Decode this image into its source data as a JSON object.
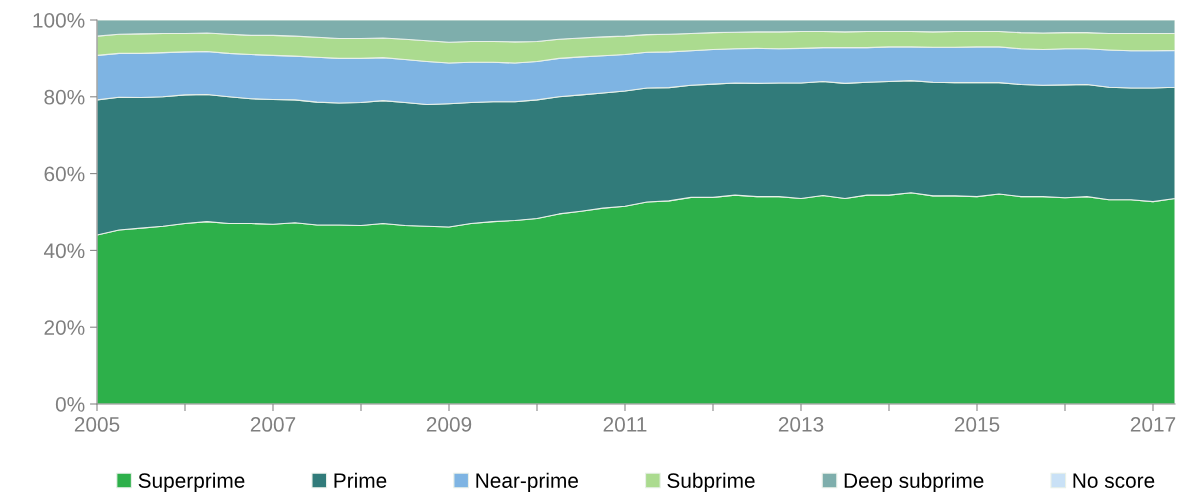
{
  "chart_data": {
    "type": "area",
    "stacked": true,
    "x": [
      2005.0,
      2005.25,
      2005.5,
      2005.75,
      2006.0,
      2006.25,
      2006.5,
      2006.75,
      2007.0,
      2007.25,
      2007.5,
      2007.75,
      2008.0,
      2008.25,
      2008.5,
      2008.75,
      2009.0,
      2009.25,
      2009.5,
      2009.75,
      2010.0,
      2010.25,
      2010.5,
      2010.75,
      2011.0,
      2011.25,
      2011.5,
      2011.75,
      2012.0,
      2012.25,
      2012.5,
      2012.75,
      2013.0,
      2013.25,
      2013.5,
      2013.75,
      2014.0,
      2014.25,
      2014.5,
      2014.75,
      2015.0,
      2015.25,
      2015.5,
      2015.75,
      2016.0,
      2016.25,
      2016.5,
      2016.75,
      2017.0,
      2017.25
    ],
    "series": [
      {
        "name": "Superprime",
        "color": "#2db04a",
        "values": [
          44,
          45.3,
          45.8,
          46.3,
          47,
          47.5,
          47,
          47,
          46.8,
          47.2,
          46.6,
          46.6,
          46.5,
          47,
          46.5,
          46.3,
          46.1,
          47,
          47.5,
          47.8,
          48.3,
          49.5,
          50.2,
          51,
          51.5,
          52.6,
          52.9,
          53.8,
          53.8,
          54.4,
          54,
          54,
          53.5,
          54.3,
          53.5,
          54.4,
          54.4,
          55,
          54.2,
          54.2,
          54,
          54.7,
          54,
          54,
          53.7,
          54,
          53.2,
          53.2,
          52.7,
          53.5
        ]
      },
      {
        "name": "Prime",
        "color": "#317b7a",
        "values": [
          35.2,
          34.6,
          34.0,
          33.7,
          33.5,
          33.1,
          33.0,
          32.5,
          32.5,
          32.0,
          32.0,
          31.8,
          32.0,
          32.0,
          32.0,
          31.7,
          32.1,
          31.5,
          31.2,
          30.9,
          30.9,
          30.5,
          30.3,
          30.0,
          30.0,
          29.7,
          29.5,
          29.2,
          29.5,
          29.2,
          29.5,
          29.6,
          30.1,
          29.7,
          30.0,
          29.4,
          29.6,
          29.2,
          29.6,
          29.5,
          29.7,
          29.0,
          29.2,
          29.0,
          29.4,
          29.2,
          29.3,
          29.1,
          29.6,
          29.0
        ]
      },
      {
        "name": "Near-prime",
        "color": "#7eb4e3",
        "values": [
          11.6,
          11.4,
          11.5,
          11.5,
          11.2,
          11.2,
          11.3,
          11.5,
          11.5,
          11.4,
          11.7,
          11.6,
          11.5,
          11.2,
          11.2,
          11.2,
          10.6,
          10.5,
          10.3,
          10.1,
          10.0,
          10.0,
          9.9,
          9.7,
          9.5,
          9.3,
          9.3,
          9.0,
          9.0,
          8.9,
          9.1,
          8.9,
          9.0,
          8.8,
          9.3,
          9.0,
          9.0,
          8.8,
          9.1,
          9.2,
          9.3,
          9.3,
          9.3,
          9.3,
          9.4,
          9.3,
          9.7,
          9.7,
          9.7,
          9.6
        ]
      },
      {
        "name": "Subprime",
        "color": "#abdb8f",
        "values": [
          5.0,
          5.0,
          5.1,
          5.0,
          4.8,
          4.8,
          5.0,
          5.0,
          5.2,
          5.2,
          5.2,
          5.2,
          5.2,
          5.1,
          5.3,
          5.4,
          5.4,
          5.4,
          5.4,
          5.5,
          5.2,
          5.0,
          4.9,
          4.9,
          4.8,
          4.6,
          4.6,
          4.5,
          4.4,
          4.3,
          4.3,
          4.4,
          4.4,
          4.2,
          4.1,
          4.2,
          4.0,
          4.0,
          4.0,
          4.1,
          4.0,
          4.0,
          4.2,
          4.3,
          4.2,
          4.2,
          4.3,
          4.5,
          4.5,
          4.4
        ]
      },
      {
        "name": "Deep subprime",
        "color": "#7eaeac",
        "values": [
          4.2,
          3.7,
          3.6,
          3.5,
          3.5,
          3.4,
          3.7,
          4.0,
          4.0,
          4.2,
          4.5,
          4.8,
          4.8,
          4.7,
          5.0,
          5.4,
          5.8,
          5.6,
          5.6,
          5.7,
          5.6,
          5.0,
          4.7,
          4.4,
          4.2,
          3.8,
          3.7,
          3.5,
          3.3,
          3.2,
          3.1,
          3.1,
          3.0,
          3.0,
          3.1,
          3.0,
          3.0,
          3.0,
          3.1,
          3.0,
          3.0,
          3.0,
          3.3,
          3.4,
          3.3,
          3.3,
          3.5,
          3.5,
          3.5,
          3.5
        ]
      },
      {
        "name": "No score",
        "color": "#c9e1f6",
        "values": [
          null,
          null,
          null,
          null,
          null,
          null,
          null,
          null,
          null,
          null,
          null,
          null,
          null,
          null,
          null,
          null,
          null,
          null,
          null,
          null,
          null,
          null,
          null,
          null,
          null,
          null,
          null,
          null,
          null,
          null,
          null,
          null,
          null,
          null,
          null,
          null,
          null,
          null,
          null,
          null,
          null,
          null,
          null,
          null,
          null,
          null,
          null,
          null,
          null,
          null
        ]
      }
    ],
    "xlim": [
      2005,
      2017.25
    ],
    "xticks": [
      2005,
      {
        "value": 2006,
        "label": null
      },
      2007,
      {
        "value": 2008,
        "label": null
      },
      2009,
      {
        "value": 2010,
        "label": null
      },
      2011,
      {
        "value": 2012,
        "label": null
      },
      2013,
      {
        "value": 2014,
        "label": null
      },
      2015,
      {
        "value": 2016,
        "label": null
      },
      2017
    ],
    "ylim": [
      0,
      100
    ],
    "yticks": [
      {
        "value": 0,
        "label": "0%"
      },
      {
        "value": 20,
        "label": "20%"
      },
      {
        "value": 40,
        "label": "40%"
      },
      {
        "value": 60,
        "label": "60%"
      },
      {
        "value": 80,
        "label": "80%"
      },
      {
        "value": 100,
        "label": "100%"
      }
    ],
    "grid": false,
    "legend": "bottom"
  }
}
